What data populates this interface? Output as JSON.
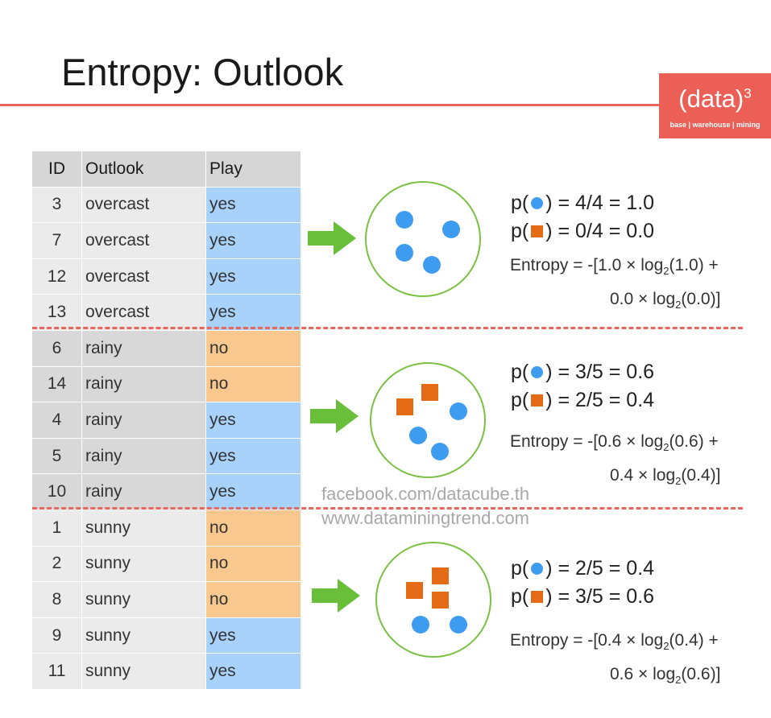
{
  "title": "Entropy: Outlook",
  "logo": {
    "main": "(data)",
    "sup": "3",
    "tagline": "base | warehouse | mining"
  },
  "table": {
    "headers": [
      "ID",
      "Outlook",
      "Play"
    ],
    "rows": [
      {
        "id": "3",
        "outlook": "overcast",
        "play": "yes"
      },
      {
        "id": "7",
        "outlook": "overcast",
        "play": "yes"
      },
      {
        "id": "12",
        "outlook": "overcast",
        "play": "yes"
      },
      {
        "id": "13",
        "outlook": "overcast",
        "play": "yes"
      },
      {
        "id": "6",
        "outlook": "rainy",
        "play": "no"
      },
      {
        "id": "14",
        "outlook": "rainy",
        "play": "no"
      },
      {
        "id": "4",
        "outlook": "rainy",
        "play": "yes"
      },
      {
        "id": "5",
        "outlook": "rainy",
        "play": "yes"
      },
      {
        "id": "10",
        "outlook": "rainy",
        "play": "yes"
      },
      {
        "id": "1",
        "outlook": "sunny",
        "play": "no"
      },
      {
        "id": "2",
        "outlook": "sunny",
        "play": "no"
      },
      {
        "id": "8",
        "outlook": "sunny",
        "play": "no"
      },
      {
        "id": "9",
        "outlook": "sunny",
        "play": "yes"
      },
      {
        "id": "11",
        "outlook": "sunny",
        "play": "yes"
      }
    ]
  },
  "groups": [
    {
      "outlook": "overcast",
      "p_yes": {
        "prefix": "p(",
        "suffix": ") = 4/4 = 1.0"
      },
      "p_no": {
        "prefix": "p(",
        "suffix": ") = 0/4 = 0.0"
      },
      "entropy_line1": {
        "pre": "Entropy = -[1.0 × log",
        "sub": "2",
        "post": "(1.0) +"
      },
      "entropy_line2": {
        "pre": "0.0 × log",
        "sub": "2",
        "post": "(0.0)]"
      },
      "yes_count": 4,
      "no_count": 0
    },
    {
      "outlook": "rainy",
      "p_yes": {
        "prefix": "p(",
        "suffix": ") = 3/5 = 0.6"
      },
      "p_no": {
        "prefix": "p(",
        "suffix": ") = 2/5 = 0.4"
      },
      "entropy_line1": {
        "pre": "Entropy = -[0.6 × log",
        "sub": "2",
        "post": "(0.6) +"
      },
      "entropy_line2": {
        "pre": "0.4 × log",
        "sub": "2",
        "post": "(0.4)]"
      },
      "yes_count": 3,
      "no_count": 2
    },
    {
      "outlook": "sunny",
      "p_yes": {
        "prefix": "p(",
        "suffix": ") = 2/5 = 0.4"
      },
      "p_no": {
        "prefix": "p(",
        "suffix": ") = 3/5 = 0.6"
      },
      "entropy_line1": {
        "pre": "Entropy = -[0.4 × log",
        "sub": "2",
        "post": "(0.4) +"
      },
      "entropy_line2": {
        "pre": "0.6 × log",
        "sub": "2",
        "post": "(0.6)]"
      },
      "yes_count": 2,
      "no_count": 3
    }
  ],
  "watermark": {
    "line1": "facebook.com/datacube.th",
    "line2": "www.dataminingtrend.com"
  },
  "colors": {
    "accent": "#e8665c",
    "yes": "#a9d2fb",
    "no": "#f8c88f",
    "dot": "#3d9cf0",
    "square": "#e56a15",
    "circle": "#7ac142",
    "arrow": "#6abf3a"
  }
}
